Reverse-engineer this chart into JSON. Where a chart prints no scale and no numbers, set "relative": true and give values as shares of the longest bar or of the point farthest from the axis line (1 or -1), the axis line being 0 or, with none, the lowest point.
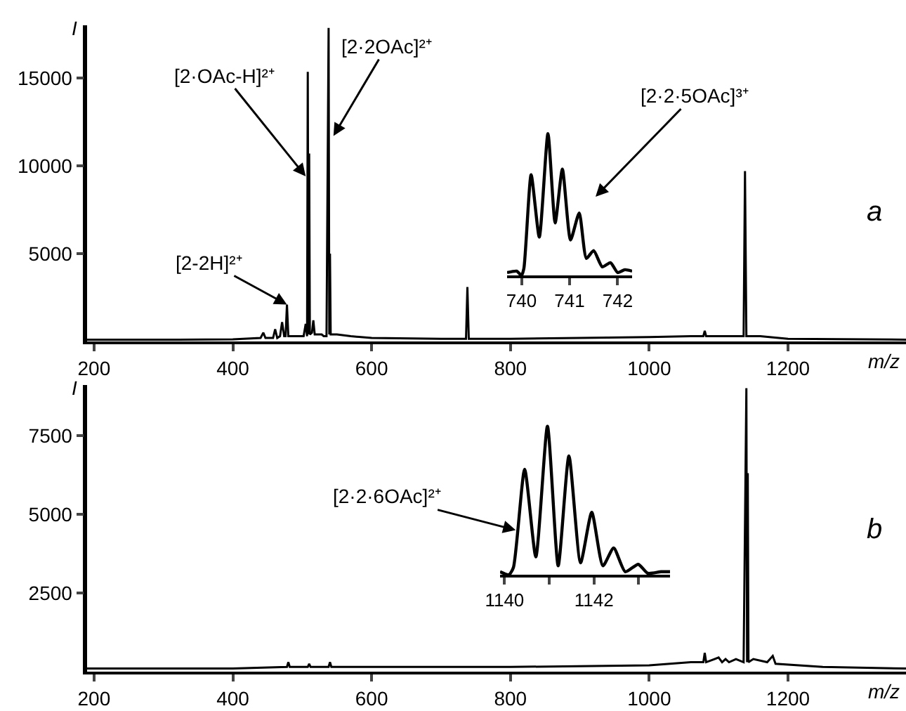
{
  "chart_data": [
    {
      "type": "line",
      "xlabel": "m/z",
      "ylabel": "I",
      "xlim": [
        190,
        1370
      ],
      "xticks": [
        200,
        400,
        600,
        800,
        1000,
        1200
      ],
      "ylim": [
        0,
        18000
      ],
      "yticks": [
        5000,
        10000,
        15000
      ],
      "x": [
        190,
        300,
        400,
        440,
        444,
        447,
        458,
        461,
        464,
        468,
        471,
        474,
        476,
        478,
        480,
        490,
        502,
        505,
        507,
        508,
        509,
        510,
        511,
        514,
        516,
        518,
        528,
        531,
        535,
        538,
        539,
        540,
        541,
        550,
        570,
        600,
        700,
        736,
        738,
        740,
        800,
        900,
        1000,
        1060,
        1078,
        1080,
        1082,
        1120,
        1136,
        1138,
        1140,
        1160,
        1200,
        1370
      ],
      "series": [
        {
          "color": "#000000",
          "values": [
            100,
            100,
            120,
            200,
            500,
            200,
            200,
            700,
            200,
            300,
            1100,
            300,
            300,
            2100,
            300,
            300,
            300,
            1000,
            300,
            15350,
            400,
            10700,
            400,
            500,
            1200,
            400,
            400,
            300,
            300,
            17850,
            400,
            5000,
            400,
            400,
            300,
            200,
            150,
            150,
            3100,
            150,
            150,
            200,
            250,
            300,
            300,
            600,
            300,
            300,
            300,
            9700,
            300,
            300,
            150,
            100
          ]
        }
      ],
      "annotations": [
        {
          "text": "[2-2H]²⁺",
          "x": 478,
          "y": 2100
        },
        {
          "text": "[2·OAc-H]²⁺",
          "x": 505,
          "y": 9400
        },
        {
          "text": "[2·2OAc]²⁺",
          "x": 545,
          "y": 11700
        },
        "a"
      ]
    },
    {
      "type": "line",
      "relative": true,
      "xlim": [
        739.7,
        742.3
      ],
      "xticks": [
        740,
        741,
        742
      ],
      "tick_labels": "x",
      "x": [
        739.7,
        739.9,
        740.0,
        740.05,
        740.2,
        740.37,
        740.55,
        740.7,
        740.85,
        741.02,
        741.2,
        741.35,
        741.5,
        741.68,
        741.85,
        742.0,
        742.15,
        742.3
      ],
      "series": [
        {
          "color": "#000000",
          "values": [
            0.02,
            0.03,
            0.0,
            0.05,
            0.71,
            0.27,
            1.0,
            0.37,
            0.75,
            0.25,
            0.44,
            0.12,
            0.175,
            0.06,
            0.09,
            0.02,
            0.04,
            0.03
          ]
        }
      ],
      "annotations": [
        "[2·2·5OAc]³⁺"
      ]
    },
    {
      "type": "line",
      "xlabel": "m/z",
      "ylabel": "I",
      "xlim": [
        190,
        1370
      ],
      "xticks": [
        200,
        400,
        600,
        800,
        1000,
        1200
      ],
      "ylim": [
        0,
        9100
      ],
      "yticks": [
        2500,
        5000,
        7500
      ],
      "x": [
        190,
        400,
        478,
        480,
        482,
        508,
        510,
        512,
        538,
        540,
        542,
        800,
        1000,
        1060,
        1078,
        1080,
        1082,
        1100,
        1105,
        1110,
        1115,
        1125,
        1136,
        1140,
        1141,
        1142,
        1143,
        1150,
        1170,
        1178,
        1182,
        1250,
        1370
      ],
      "series": [
        {
          "color": "#000000",
          "values": [
            100,
            100,
            150,
            300,
            150,
            150,
            250,
            150,
            150,
            300,
            150,
            150,
            200,
            300,
            300,
            600,
            300,
            450,
            300,
            400,
            300,
            400,
            300,
            9000,
            300,
            6300,
            300,
            400,
            300,
            500,
            250,
            150,
            100
          ]
        }
      ],
      "annotations": [
        "b"
      ]
    },
    {
      "type": "line",
      "relative": true,
      "xlim": [
        1139.9,
        1143.7
      ],
      "xticks": [
        1140,
        {
          "value": 1141,
          "label": null
        },
        1142,
        {
          "value": 1143,
          "label": null
        }
      ],
      "tick_labels": "x",
      "x": [
        1139.9,
        1140.1,
        1140.2,
        1140.45,
        1140.7,
        1140.96,
        1141.2,
        1141.44,
        1141.7,
        1141.95,
        1142.2,
        1142.44,
        1142.7,
        1142.99,
        1143.2,
        1143.5,
        1143.7
      ],
      "series": [
        {
          "color": "#000000",
          "values": [
            0.02,
            0.0,
            0.05,
            0.71,
            0.12,
            1.0,
            0.06,
            0.8,
            0.08,
            0.42,
            0.06,
            0.18,
            0.02,
            0.07,
            0.01,
            0.02,
            0.02
          ]
        }
      ],
      "annotations": [
        {
          "text": "[2·2·6OAc]²⁺",
          "x": 1140.25,
          "y": 0.3
        }
      ]
    }
  ]
}
